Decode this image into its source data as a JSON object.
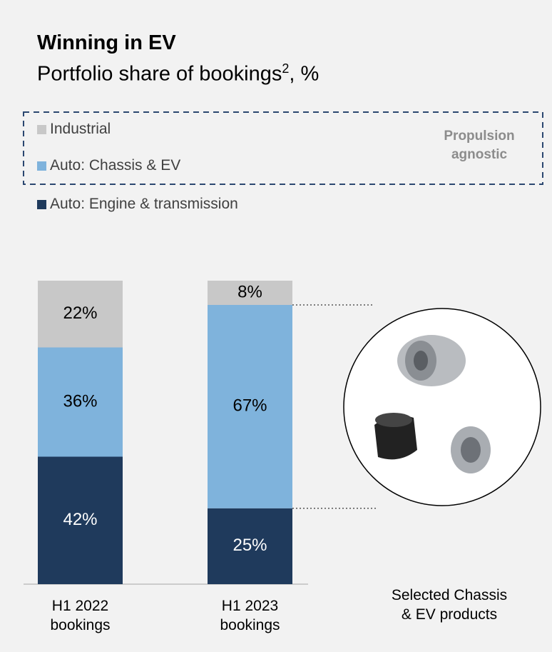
{
  "chart_data": {
    "type": "stacked_bar",
    "title": "Winning in EV",
    "subtitle": "Portfolio share of bookings",
    "subtitle_footnote": "2",
    "subtitle_suffix": ", %",
    "categories": [
      "H1 2022 bookings",
      "H1 2023 bookings"
    ],
    "series": [
      {
        "name": "Auto: Engine & transmission",
        "color": "#1f3a5c",
        "label_color": "#ffffff",
        "values": [
          42,
          25
        ],
        "value_labels": [
          "42%",
          "25%"
        ]
      },
      {
        "name": "Auto: Chassis & EV",
        "color": "#7fb3dc",
        "label_color": "#000000",
        "values": [
          36,
          67
        ],
        "value_labels": [
          "36%",
          "67%"
        ]
      },
      {
        "name": "Industrial",
        "color": "#c8c8c8",
        "label_color": "#000000",
        "values": [
          22,
          8
        ],
        "value_labels": [
          "22%",
          "8%"
        ]
      }
    ],
    "ylim": [
      0,
      100
    ],
    "group_annotation": [
      "Propulsion",
      "agnostic"
    ],
    "image_caption": "Selected Chassis & EV products"
  }
}
